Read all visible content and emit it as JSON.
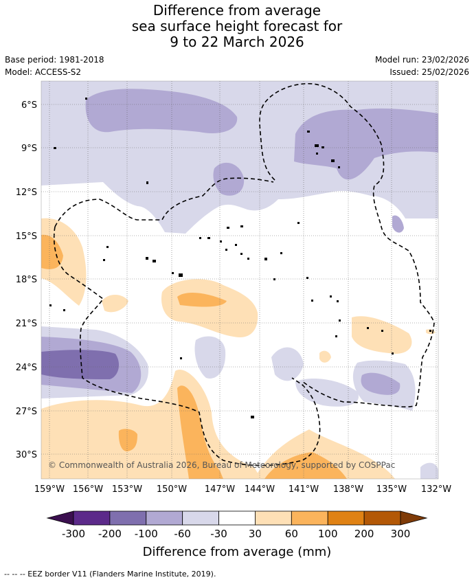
{
  "title": {
    "line1": "Difference from average",
    "line2": "sea surface height forecast for",
    "line3": "9 to 22 March 2026"
  },
  "meta": {
    "base_period": "Base period: 1981-2018",
    "model": "Model: ACCESS-S2",
    "model_run": "Model run: 23/02/2026",
    "issued": "Issued: 25/02/2026"
  },
  "map": {
    "lat_labels": [
      "6°S",
      "9°S",
      "12°S",
      "15°S",
      "18°S",
      "21°S",
      "24°S",
      "27°S",
      "30°S"
    ],
    "lon_labels": [
      "159°W",
      "156°W",
      "153°W",
      "150°W",
      "147°W",
      "144°W",
      "141°W",
      "138°W",
      "135°W",
      "132°W"
    ],
    "copyright": "© Commonwealth of Australia 2026, Bureau of Meteorology, supported by COSPPac"
  },
  "colorbar": {
    "title": "Difference from average (mm)",
    "ticks": [
      "-300",
      "-200",
      "-100",
      "-60",
      "-30",
      "30",
      "60",
      "100",
      "200",
      "300"
    ],
    "colors": [
      "#3b0f4f",
      "#5c2a8a",
      "#7f6fae",
      "#b1a9d3",
      "#d8d8ea",
      "#ffffff",
      "#fee0b6",
      "#fbb45c",
      "#e08214",
      "#b35806",
      "#7f3b08"
    ]
  },
  "footnote": "--  --  -- EEZ border V11 (Flanders Marine Institute, 2019)."
}
